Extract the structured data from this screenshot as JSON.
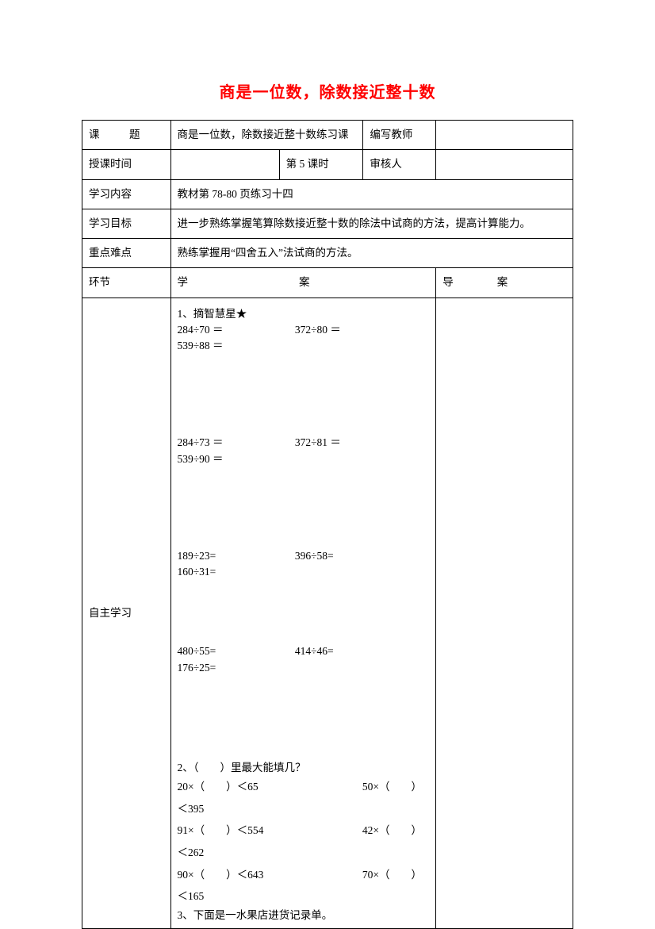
{
  "title": "商是一位数，除数接近整十数",
  "rows": {
    "r1": {
      "label": "课　题",
      "topic": "商是一位数，除数接近整十数练习课",
      "teacher_label": "编写教师",
      "teacher_value": ""
    },
    "r2": {
      "label": "授课时间",
      "c2": "",
      "c3": "第 5 课时",
      "c4": "审核人",
      "c5": ""
    },
    "r3": {
      "label": "学习内容",
      "value": "教材第 78-80 页练习十四"
    },
    "r4": {
      "label": "学习目标",
      "value": "进一步熟练掌握笔算除数接近整十数的除法中试商的方法，提高计算能力。"
    },
    "r5": {
      "label": "重点难点",
      "value": "熟练掌握用“四舍五入”法试商的方法。"
    },
    "r6": {
      "label": "环节",
      "xue": "学",
      "an": "案",
      "dao": "导",
      "an2": "案"
    },
    "r7": {
      "label": "自主学习"
    }
  },
  "content": {
    "q1_title": "1、摘智慧星★",
    "set1": {
      "a": "284÷70 ＝",
      "b": "372÷80 ＝",
      "c": "539÷88 ＝"
    },
    "set2": {
      "a": "284÷73 ＝",
      "b": "372÷81 ＝",
      "c": "539÷90 ＝"
    },
    "set3": {
      "a": "189÷23=",
      "b": "396÷58=",
      "c": "160÷31="
    },
    "set4": {
      "a": "480÷55=",
      "b": "414÷46=",
      "c": "176÷25="
    },
    "q2_title": "2、（　　）里最大能填几？",
    "fill": {
      "l1a": "20×（　　）＜65",
      "l1b": "50×（　　）＜395",
      "l2a": "91×（　　）＜554",
      "l2b": "42×（　　）＜262",
      "l3a": "90×（　　）＜643",
      "l3b": "70×（　　）＜165"
    },
    "q3_title": "3、下面是一水果店进货记录单。"
  },
  "colors": {
    "title": "#ff0000",
    "text": "#000000",
    "border": "#000000",
    "bg": "#ffffff"
  },
  "fonts": {
    "title_size": 20,
    "body_size": 13.5,
    "family": "SimSun"
  }
}
